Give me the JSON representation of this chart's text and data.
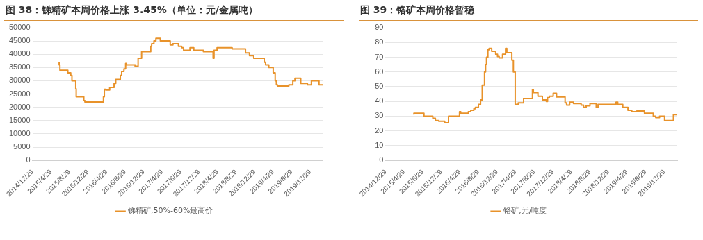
{
  "chart_data": [
    {
      "type": "step",
      "title": "图 38：锑精矿本周价格上涨 3.45%（单位：元/金属吨）",
      "legend": "bottom",
      "grid": "y",
      "marker": "none",
      "xlim": [
        "2014-12-29",
        "2020-03-20"
      ],
      "xticks": [
        {
          "value": "2014-12-29",
          "label": "2014/12/29"
        },
        {
          "value": "2015-04-29",
          "label": "2015/4/29"
        },
        {
          "value": "2015-08-29",
          "label": "2015/8/29"
        },
        {
          "value": "2015-12-29",
          "label": "2015/12/29"
        },
        {
          "value": "2016-04-29",
          "label": "2016/4/29"
        },
        {
          "value": "2016-08-29",
          "label": "2016/8/29"
        },
        {
          "value": "2016-12-29",
          "label": "2016/12/29"
        },
        {
          "value": "2017-04-29",
          "label": "2017/4/29"
        },
        {
          "value": "2017-08-29",
          "label": "2017/8/29"
        },
        {
          "value": "2017-12-29",
          "label": "2017/12/29"
        },
        {
          "value": "2018-04-29",
          "label": "2018/4/29"
        },
        {
          "value": "2018-08-29",
          "label": "2018/8/29"
        },
        {
          "value": "2018-12-29",
          "label": "2018/12/29"
        },
        {
          "value": "2019-04-29",
          "label": "2019/4/29"
        },
        {
          "value": "2019-08-29",
          "label": "2019/8/29"
        },
        {
          "value": "2019-12-29",
          "label": "2019/12/29"
        }
      ],
      "ylim": [
        0,
        50000
      ],
      "yticks": [
        0,
        5000,
        10000,
        15000,
        20000,
        25000,
        30000,
        35000,
        40000,
        45000,
        50000
      ],
      "x": [
        "2015-06-23",
        "2015-06-28",
        "2015-08-19",
        "2015-09-07",
        "2015-09-15",
        "2015-10-10",
        "2015-10-13",
        "2015-12-02",
        "2015-12-09",
        "2016-04-09",
        "2016-04-15",
        "2016-04-24",
        "2016-05-20",
        "2016-06-18",
        "2016-06-29",
        "2016-07-29",
        "2016-08-07",
        "2016-08-22",
        "2016-09-02",
        "2016-09-07",
        "2016-11-03",
        "2016-11-23",
        "2016-12-16",
        "2017-02-14",
        "2017-02-20",
        "2017-03-07",
        "2017-03-20",
        "2017-04-18",
        "2017-06-22",
        "2017-07-10",
        "2017-08-15",
        "2017-09-05",
        "2017-09-18",
        "2017-10-30",
        "2017-11-24",
        "2018-01-26",
        "2018-03-31",
        "2018-04-06",
        "2018-04-26",
        "2018-08-03",
        "2018-10-30",
        "2018-11-25",
        "2018-12-23",
        "2019-03-02",
        "2019-03-11",
        "2019-04-01",
        "2019-04-30",
        "2019-05-13",
        "2019-05-21",
        "2019-05-28",
        "2019-08-11",
        "2019-09-06",
        "2019-09-20",
        "2019-10-28",
        "2019-12-11",
        "2020-01-06",
        "2020-02-25",
        "2020-03-20"
      ],
      "series": [
        {
          "name": "锑精矿,50%-60%最高价",
          "color": "#e8922a",
          "values": [
            37000,
            36000,
            34000,
            33000,
            32000,
            30000,
            27000,
            24000,
            22500,
            22000,
            24000,
            26800,
            26500,
            27500,
            29000,
            30500,
            32000,
            33500,
            34500,
            36500,
            36000,
            35500,
            38500,
            41000,
            43000,
            44000,
            45000,
            46000,
            45000,
            43500,
            44000,
            43000,
            42500,
            41500,
            42500,
            41500,
            41000,
            38500,
            41500,
            42500,
            42000,
            40500,
            39500,
            38500,
            37000,
            36000,
            35000,
            33000,
            30000,
            28500,
            28000,
            28500,
            30000,
            31000,
            29000,
            28500,
            30000,
            28500
          ]
        }
      ]
    },
    {
      "type": "step",
      "title": "图 39：铬矿本周价格暂稳",
      "legend": "bottom",
      "grid": "y",
      "marker": "none",
      "xlim": [
        "2014-12-29",
        "2020-03-24"
      ],
      "xticks": [
        {
          "value": "2014-12-29",
          "label": "2014/12/29"
        },
        {
          "value": "2015-04-29",
          "label": "2015/4/29"
        },
        {
          "value": "2015-08-29",
          "label": "2015/8/29"
        },
        {
          "value": "2015-12-29",
          "label": "2015/12/29"
        },
        {
          "value": "2016-04-29",
          "label": "2016/4/29"
        },
        {
          "value": "2016-08-29",
          "label": "2016/8/29"
        },
        {
          "value": "2016-12-29",
          "label": "2016/12/29"
        },
        {
          "value": "2017-04-29",
          "label": "2017/4/29"
        },
        {
          "value": "2017-08-29",
          "label": "2017/8/29"
        },
        {
          "value": "2017-12-29",
          "label": "2017/12/29"
        },
        {
          "value": "2018-04-29",
          "label": "2018/4/29"
        },
        {
          "value": "2018-08-29",
          "label": "2018/8/29"
        },
        {
          "value": "2018-12-29",
          "label": "2018/12/29"
        },
        {
          "value": "2019-04-29",
          "label": "2019/4/29"
        },
        {
          "value": "2019-08-29",
          "label": "2019/8/29"
        },
        {
          "value": "2019-12-29",
          "label": "2019/12/29"
        }
      ],
      "ylim": [
        0,
        90
      ],
      "yticks": [
        0,
        10,
        20,
        30,
        40,
        50,
        60,
        70,
        80,
        90
      ],
      "x": [
        "2015-07-03",
        "2015-09-07",
        "2015-11-04",
        "2015-11-21",
        "2015-12-13",
        "2016-01-21",
        "2016-02-15",
        "2016-04-27",
        "2016-05-05",
        "2016-06-24",
        "2016-07-10",
        "2016-07-30",
        "2016-08-09",
        "2016-08-29",
        "2016-09-12",
        "2016-09-23",
        "2016-10-08",
        "2016-10-15",
        "2016-10-21",
        "2016-10-30",
        "2016-11-07",
        "2016-11-24",
        "2016-12-20",
        "2017-01-01",
        "2017-01-12",
        "2017-02-03",
        "2017-02-23",
        "2017-03-03",
        "2017-04-05",
        "2017-04-15",
        "2017-04-27",
        "2017-05-17",
        "2017-06-21",
        "2017-08-18",
        "2017-08-24",
        "2017-09-23",
        "2017-10-22",
        "2017-11-17",
        "2017-11-25",
        "2017-12-07",
        "2018-01-01",
        "2018-01-23",
        "2018-03-20",
        "2018-03-30",
        "2018-04-19",
        "2018-05-14",
        "2018-07-03",
        "2018-07-19",
        "2018-08-05",
        "2018-08-30",
        "2018-10-10",
        "2018-10-22",
        "2019-02-17",
        "2019-02-28",
        "2019-04-02",
        "2019-05-06",
        "2019-05-31",
        "2019-07-03",
        "2019-08-22",
        "2019-10-19",
        "2019-11-04",
        "2019-11-29",
        "2020-01-01",
        "2020-02-28",
        "2020-03-24"
      ],
      "series": [
        {
          "name": "铬矿,元/吨度",
          "color": "#e8922a",
          "values": [
            31,
            32,
            30,
            28.5,
            27,
            26.5,
            25.5,
            30,
            33,
            32,
            33,
            34,
            35,
            36,
            38,
            41,
            51,
            60,
            65,
            70,
            75,
            76,
            74,
            72,
            70.5,
            69.5,
            72,
            76,
            73,
            68,
            60,
            38,
            39,
            42,
            48,
            46,
            43.5,
            41,
            40,
            42.5,
            43.5,
            45.5,
            43,
            39,
            37.5,
            39.5,
            38.5,
            37.5,
            36,
            37,
            38.5,
            36,
            38,
            39.5,
            38,
            36,
            34,
            33,
            33.5,
            32,
            30,
            29,
            30,
            27,
            31
          ]
        }
      ]
    }
  ]
}
